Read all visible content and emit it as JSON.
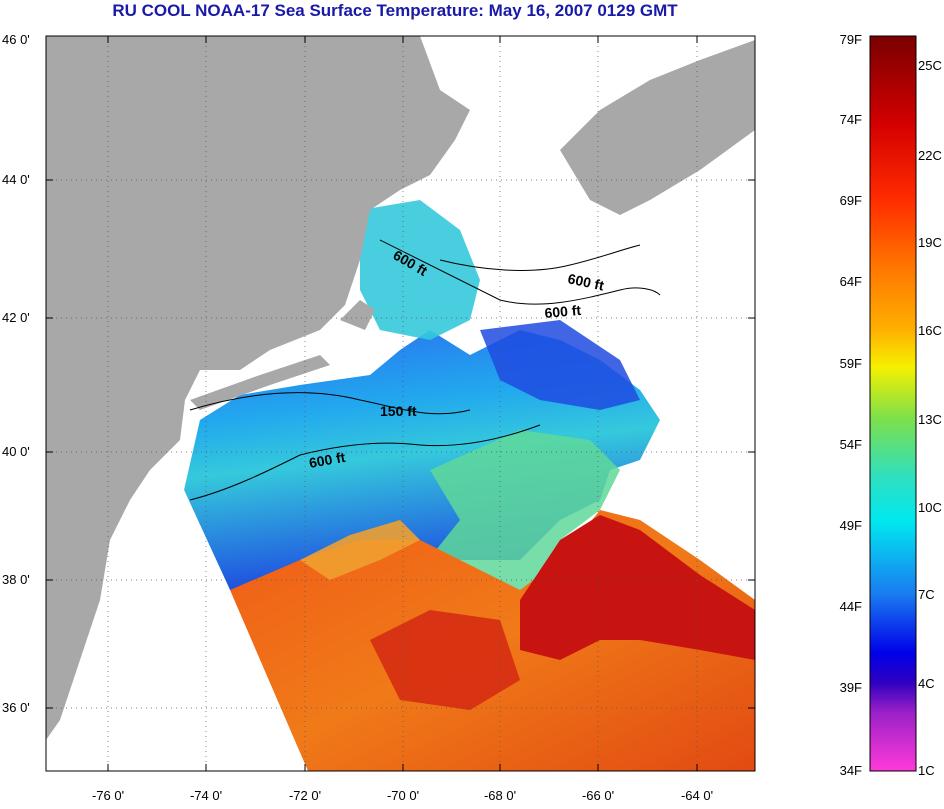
{
  "title": "RU COOL  NOAA-17  Sea Surface Temperature:  May 16, 2007 0129 GMT",
  "map": {
    "lat_labels": [
      "46 0'",
      "44 0'",
      "42 0'",
      "40 0'",
      "38 0'",
      "36 0'"
    ],
    "lon_labels": [
      "-76 0'",
      "-74 0'",
      "-72 0'",
      "-70 0'",
      "-68 0'",
      "-66 0'",
      "-64 0'"
    ],
    "contour_labels": [
      "600 ft",
      "600 ft",
      "600 ft",
      "150 ft",
      "600 ft"
    ],
    "colors": {
      "land": "#a8a8a8",
      "no_data": "#ffffff",
      "cold": "#1e4be0",
      "cool": "#22b7f0",
      "mid": "#3ad6c8",
      "warm": "#f07a18",
      "hot": "#d81a10",
      "grid": "#555555"
    }
  },
  "colorbar": {
    "f_labels": [
      "79F",
      "74F",
      "69F",
      "64F",
      "59F",
      "54F",
      "49F",
      "44F",
      "39F",
      "34F"
    ],
    "c_labels": [
      "25C",
      "22C",
      "19C",
      "16C",
      "13C",
      "10C",
      "7C",
      "4C",
      "1C"
    ]
  }
}
